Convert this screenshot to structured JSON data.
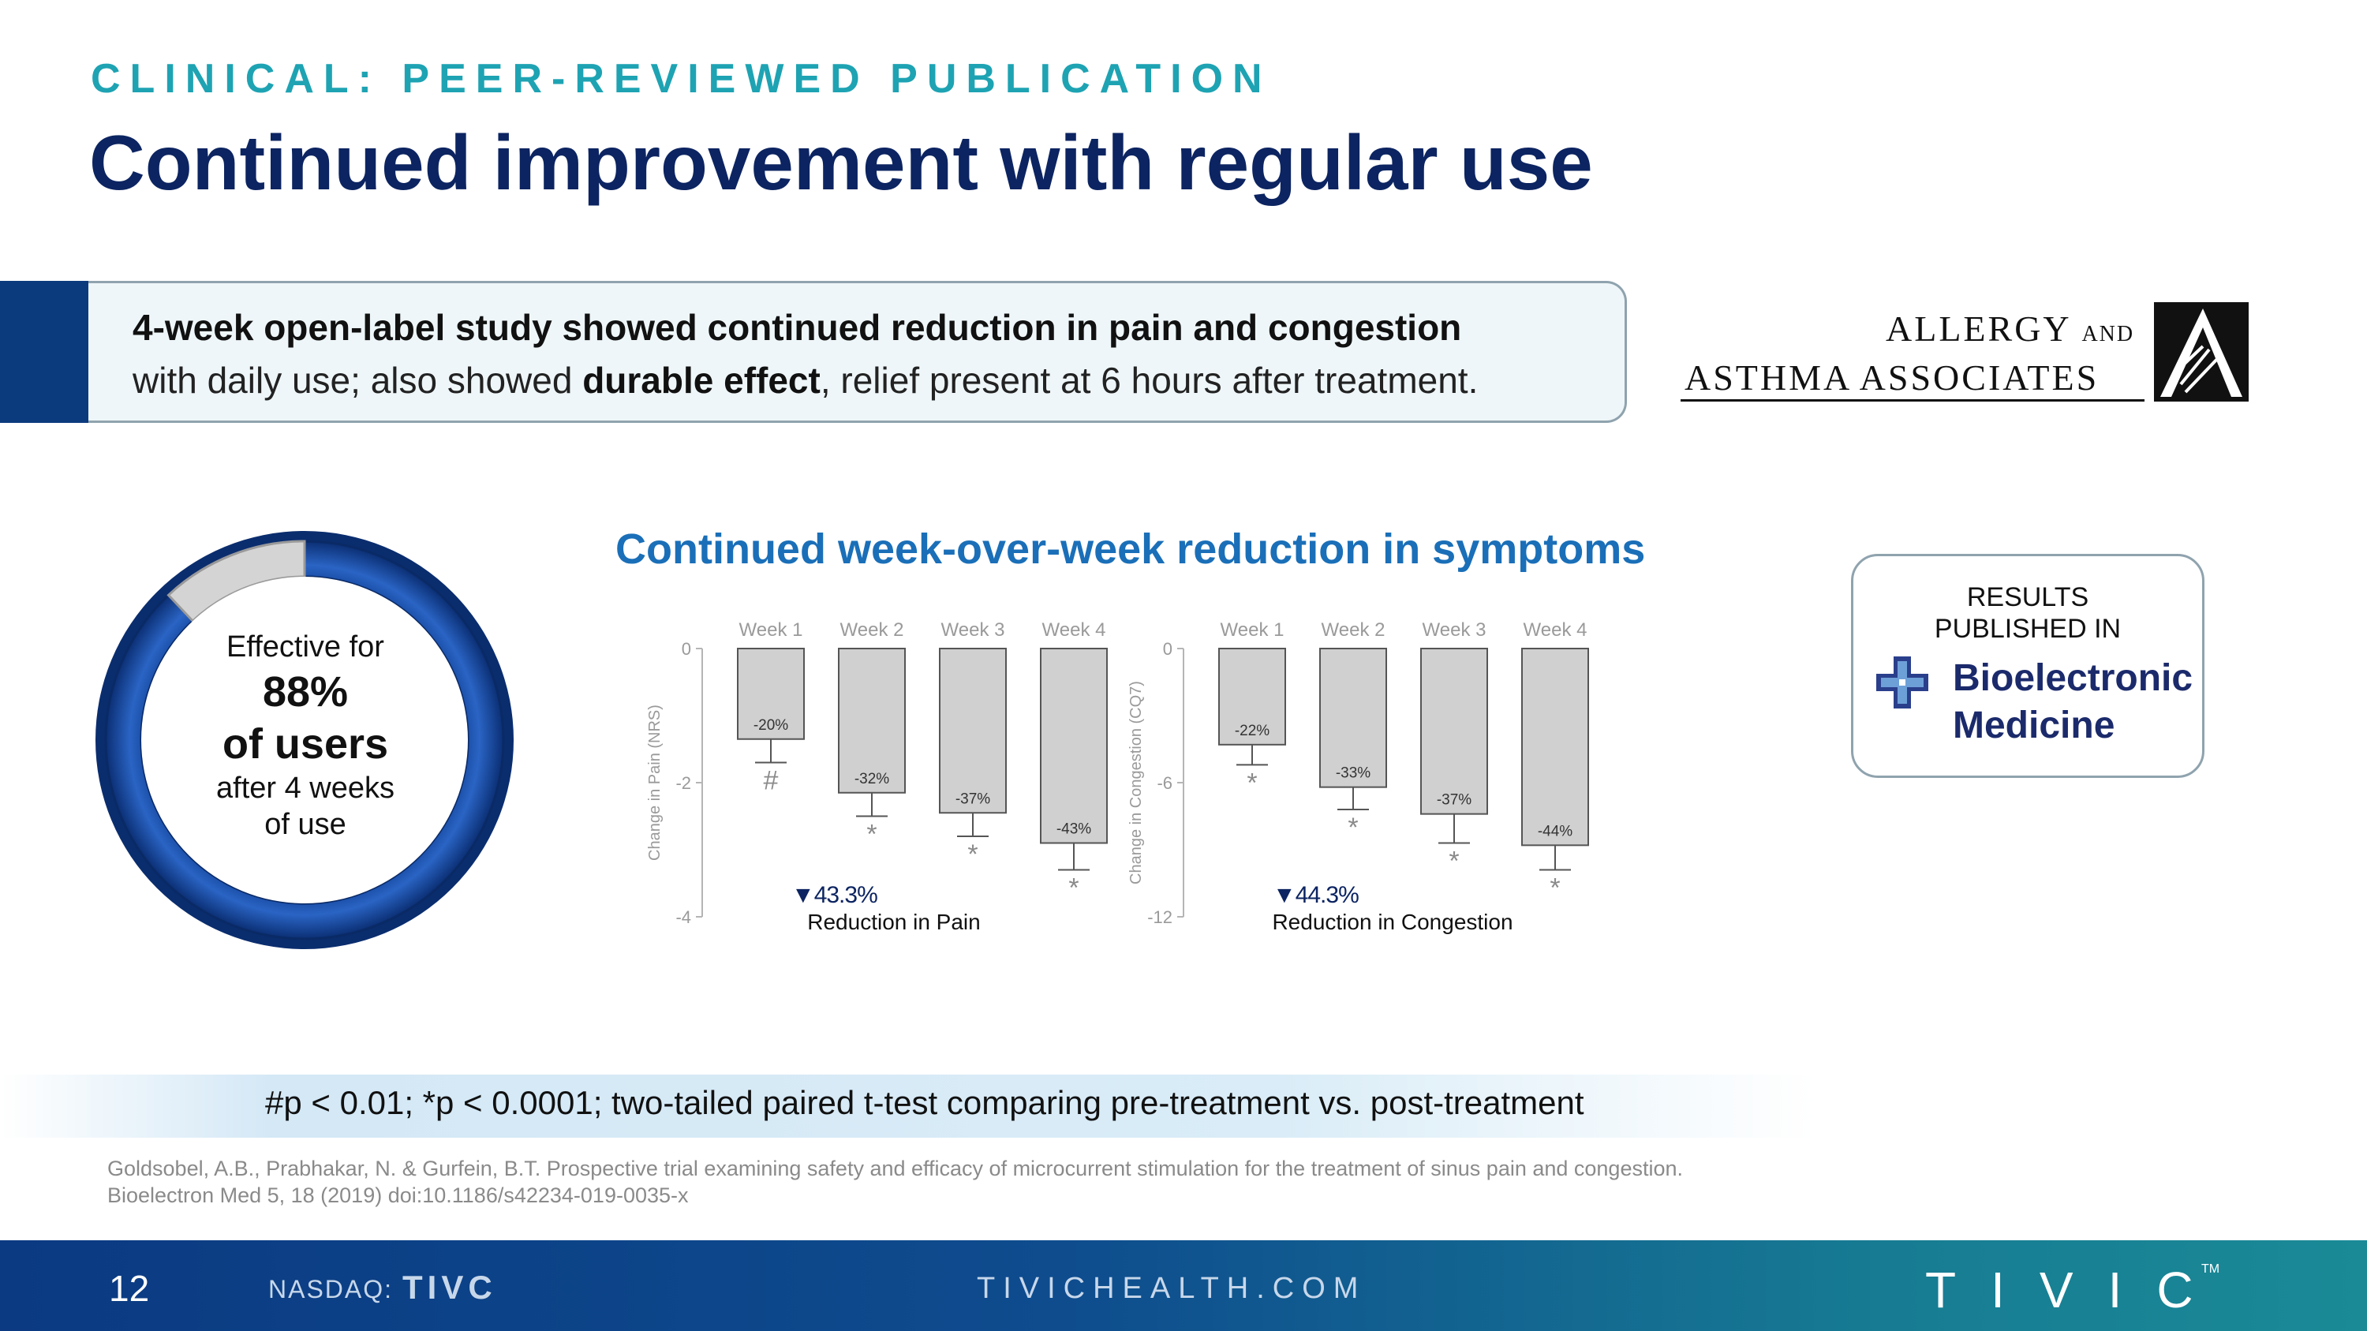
{
  "header": {
    "eyebrow": "CLINICAL: PEER-REVIEWED PUBLICATION",
    "title": "Continued improvement with regular use"
  },
  "callout": {
    "line1": "4-week open-label study showed continued reduction in pain and congestion",
    "line2_pre": "with daily use; also showed ",
    "line2_bold": "durable effect",
    "line2_post": ", relief present at 6 hours after treatment."
  },
  "partner_logo": {
    "line1_main": "ALLERGY",
    "line1_small": "AND",
    "line2": "ASTHMA ASSOCIATES",
    "icon": "aaa-a-logo-icon"
  },
  "ring": {
    "percent_value": 88,
    "line1": "Effective for",
    "line2": "88%",
    "line3": "of users",
    "line4": "after 4 weeks",
    "line5": "of use",
    "colors": {
      "effective": "#1446a0",
      "remaining": "#d4d4d4"
    }
  },
  "chart_title": "Continued week-over-week reduction in symptoms",
  "publication": {
    "line1": "RESULTS",
    "line2": "PUBLISHED IN",
    "journal_line1": "Bioelectronic",
    "journal_line2": "Medicine",
    "icon": "bioelectronic-medicine-logo-icon"
  },
  "chart_data": [
    {
      "type": "bar",
      "ylabel": "Change in Pain (NRS)",
      "ylim": [
        -4,
        0
      ],
      "yticks": [
        0,
        -2,
        -4
      ],
      "categories": [
        "Week 1",
        "Week 2",
        "Week 3",
        "Week 4"
      ],
      "values": [
        -1.35,
        -2.15,
        -2.45,
        -2.9
      ],
      "errors": [
        0.35,
        0.35,
        0.35,
        0.4
      ],
      "bar_labels": [
        "-20%",
        "-32%",
        "-37%",
        "-43%"
      ],
      "significance": [
        "#",
        "*",
        "*",
        "*"
      ],
      "summary_value": "▼43.3%",
      "summary_label": "Reduction in Pain"
    },
    {
      "type": "bar",
      "ylabel": "Change in Congestion (CQ7)",
      "ylim": [
        -12,
        0
      ],
      "yticks": [
        0,
        -6,
        -12
      ],
      "categories": [
        "Week 1",
        "Week 2",
        "Week 3",
        "Week 4"
      ],
      "values": [
        -4.3,
        -6.2,
        -7.4,
        -8.8
      ],
      "errors": [
        0.9,
        1.0,
        1.3,
        1.1
      ],
      "bar_labels": [
        "-22%",
        "-33%",
        "-37%",
        "-44%"
      ],
      "significance": [
        "*",
        "*",
        "*",
        "*"
      ],
      "summary_value": "▼44.3%",
      "summary_label": "Reduction in Congestion"
    }
  ],
  "footnote": "#p < 0.01; *p < 0.0001; two-tailed paired t-test comparing pre-treatment vs. post-treatment",
  "citation": {
    "line1": "Goldsobel, A.B., Prabhakar, N. & Gurfein, B.T. Prospective trial examining safety and efficacy of microcurrent stimulation for the treatment of sinus pain and congestion.",
    "line2": "Bioelectron Med 5, 18 (2019) doi:10.1186/s42234-019-0035-x"
  },
  "footer": {
    "page_number": "12",
    "nasdaq_label": "NASDAQ:",
    "ticker": "TIVC",
    "website": "TIVICHEALTH.COM",
    "logo_text": "TIVIC",
    "logo_tm": "TM"
  }
}
